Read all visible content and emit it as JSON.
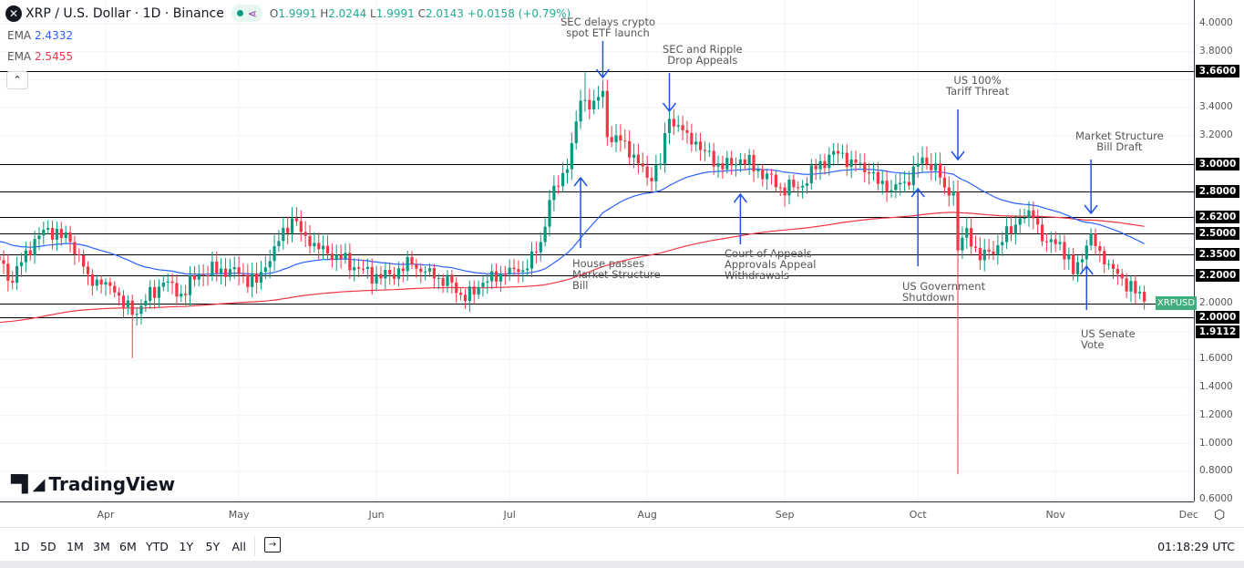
{
  "header": {
    "symbol_icon": "xrp-icon",
    "title": "XRP / U.S. Dollar · 1D · Binance",
    "ohlc": {
      "o_label": "O",
      "o": "1.9991",
      "h_label": "H",
      "h": "2.0244",
      "l_label": "L",
      "l": "1.9991",
      "c_label": "C",
      "c": "2.0143",
      "change": "+0.0158 (+0.79%)"
    }
  },
  "indicators": [
    {
      "name": "EMA",
      "value": "2.4332",
      "color": "#2962ff"
    },
    {
      "name": "EMA",
      "value": "2.5455",
      "color": "#f23645"
    }
  ],
  "symbol_tag": "XRPUSD",
  "chart_data": {
    "type": "candlestick",
    "title": "XRP / U.S. Dollar · 1D · Binance",
    "colors": {
      "up": "#089981",
      "down": "#f23645",
      "ema_fast": "#2962ff",
      "ema_slow": "#f23645"
    },
    "ylim": [
      0.6,
      4.0
    ],
    "y_ticks": [
      "4.0000",
      "3.8000",
      "3.4000",
      "3.2000",
      "2.0000",
      "1.6000",
      "1.4000",
      "1.2000",
      "1.0000",
      "0.8000",
      "0.6000"
    ],
    "y_tick_values": [
      4.0,
      3.8,
      3.4,
      3.2,
      2.0,
      1.6,
      1.4,
      1.2,
      1.0,
      0.8,
      0.6
    ],
    "x_ticks": [
      "Apr",
      "May",
      "Jun",
      "Jul",
      "Aug",
      "Sep",
      "Oct",
      "Nov",
      "Dec"
    ],
    "x_tick_dates": [
      "2025-04-01",
      "2025-05-01",
      "2025-06-01",
      "2025-07-01",
      "2025-08-01",
      "2025-09-01",
      "2025-10-01",
      "2025-11-01",
      "2025-12-01"
    ],
    "grid": true,
    "close_path": [
      [
        "2025-03-08",
        2.31
      ],
      [
        "2025-03-11",
        2.15
      ],
      [
        "2025-03-14",
        2.38
      ],
      [
        "2025-03-19",
        2.54
      ],
      [
        "2025-03-24",
        2.44
      ],
      [
        "2025-03-28",
        2.21
      ],
      [
        "2025-04-03",
        2.08
      ],
      [
        "2025-04-07",
        1.92
      ],
      [
        "2025-04-10",
        2.02
      ],
      [
        "2025-04-14",
        2.15
      ],
      [
        "2025-04-18",
        2.07
      ],
      [
        "2025-04-22",
        2.21
      ],
      [
        "2025-04-27",
        2.25
      ],
      [
        "2025-05-01",
        2.21
      ],
      [
        "2025-05-05",
        2.15
      ],
      [
        "2025-05-09",
        2.41
      ],
      [
        "2025-05-13",
        2.61
      ],
      [
        "2025-05-17",
        2.41
      ],
      [
        "2025-05-23",
        2.35
      ],
      [
        "2025-05-28",
        2.25
      ],
      [
        "2025-06-02",
        2.18
      ],
      [
        "2025-06-09",
        2.28
      ],
      [
        "2025-06-14",
        2.18
      ],
      [
        "2025-06-18",
        2.15
      ],
      [
        "2025-06-21",
        2.02
      ],
      [
        "2025-06-25",
        2.15
      ],
      [
        "2025-06-30",
        2.21
      ],
      [
        "2025-07-05",
        2.25
      ],
      [
        "2025-07-08",
        2.44
      ],
      [
        "2025-07-10",
        2.74
      ],
      [
        "2025-07-14",
        2.96
      ],
      [
        "2025-07-17",
        3.45
      ],
      [
        "2025-07-20",
        3.45
      ],
      [
        "2025-07-22",
        3.52
      ],
      [
        "2025-07-23",
        3.19
      ],
      [
        "2025-07-27",
        3.16
      ],
      [
        "2025-08-01",
        2.9
      ],
      [
        "2025-08-04",
        3.0
      ],
      [
        "2025-08-06",
        3.32
      ],
      [
        "2025-08-10",
        3.22
      ],
      [
        "2025-08-14",
        3.09
      ],
      [
        "2025-08-18",
        2.96
      ],
      [
        "2025-08-22",
        3.03
      ],
      [
        "2025-08-26",
        2.96
      ],
      [
        "2025-08-31",
        2.83
      ],
      [
        "2025-09-04",
        2.83
      ],
      [
        "2025-09-08",
        2.96
      ],
      [
        "2025-09-12",
        3.09
      ],
      [
        "2025-09-16",
        3.03
      ],
      [
        "2025-09-20",
        2.93
      ],
      [
        "2025-09-24",
        2.8
      ],
      [
        "2025-09-28",
        2.87
      ],
      [
        "2025-10-01",
        3.0
      ],
      [
        "2025-10-05",
        3.0
      ],
      [
        "2025-10-07",
        2.83
      ],
      [
        "2025-10-09",
        2.8
      ],
      [
        "2025-10-10",
        2.38
      ],
      [
        "2025-10-12",
        2.54
      ],
      [
        "2025-10-15",
        2.31
      ],
      [
        "2025-10-20",
        2.44
      ],
      [
        "2025-10-24",
        2.61
      ],
      [
        "2025-10-27",
        2.61
      ],
      [
        "2025-10-30",
        2.44
      ],
      [
        "2025-11-02",
        2.44
      ],
      [
        "2025-11-05",
        2.21
      ],
      [
        "2025-11-09",
        2.5
      ],
      [
        "2025-11-12",
        2.28
      ],
      [
        "2025-11-16",
        2.18
      ],
      [
        "2025-11-21",
        2.0143
      ]
    ],
    "wick_extremes": [
      [
        "2025-04-07",
        1.61
      ],
      [
        "2025-10-10",
        0.78
      ],
      [
        "2025-07-18",
        3.66
      ]
    ],
    "levels": [
      {
        "price": 3.66,
        "label": "3.6600"
      },
      {
        "price": 3.0,
        "label": "3.0000"
      },
      {
        "price": 2.8,
        "label": "2.8000"
      },
      {
        "price": 2.62,
        "label": "2.6200"
      },
      {
        "price": 2.5,
        "label": "2.5000"
      },
      {
        "price": 2.35,
        "label": "2.3500"
      },
      {
        "price": 2.2,
        "label": "2.2000"
      },
      {
        "price": 2.0,
        "label": "2.0000"
      },
      {
        "price": 1.9112,
        "label": "1.9112"
      }
    ],
    "annotations": [
      {
        "lines": [
          "SEC delays crypto",
          "spot ETF launch"
        ],
        "date": "2025-07-22",
        "dir": "down"
      },
      {
        "lines": [
          "SEC and Ripple",
          "Drop Appeals"
        ],
        "date": "2025-08-06",
        "dir": "down"
      },
      {
        "lines": [
          "US 100%",
          "Tariff Threat"
        ],
        "date": "2025-10-10",
        "dir": "down"
      },
      {
        "lines": [
          "Market Structure",
          "Bill Draft"
        ],
        "date": "2025-11-09",
        "dir": "down"
      },
      {
        "lines": [
          "House passes",
          "Market Structure",
          "Bill"
        ],
        "date": "2025-07-17",
        "dir": "up"
      },
      {
        "lines": [
          "Court of Appeals",
          "Approvals Appeal",
          "Withdrawals"
        ],
        "date": "2025-08-22",
        "dir": "up"
      },
      {
        "lines": [
          "US Government",
          "Shutdown"
        ],
        "date": "2025-10-01",
        "dir": "up"
      },
      {
        "lines": [
          "US Senate",
          "Vote"
        ],
        "date": "2025-11-08",
        "dir": "up"
      }
    ]
  },
  "watermark": "TradingView",
  "toolbar": {
    "ranges": [
      "1D",
      "5D",
      "1M",
      "3M",
      "6M",
      "YTD",
      "1Y",
      "5Y",
      "All"
    ],
    "calendar_icon": "calendar-goto-icon",
    "clock": "01:18:29 UTC"
  }
}
